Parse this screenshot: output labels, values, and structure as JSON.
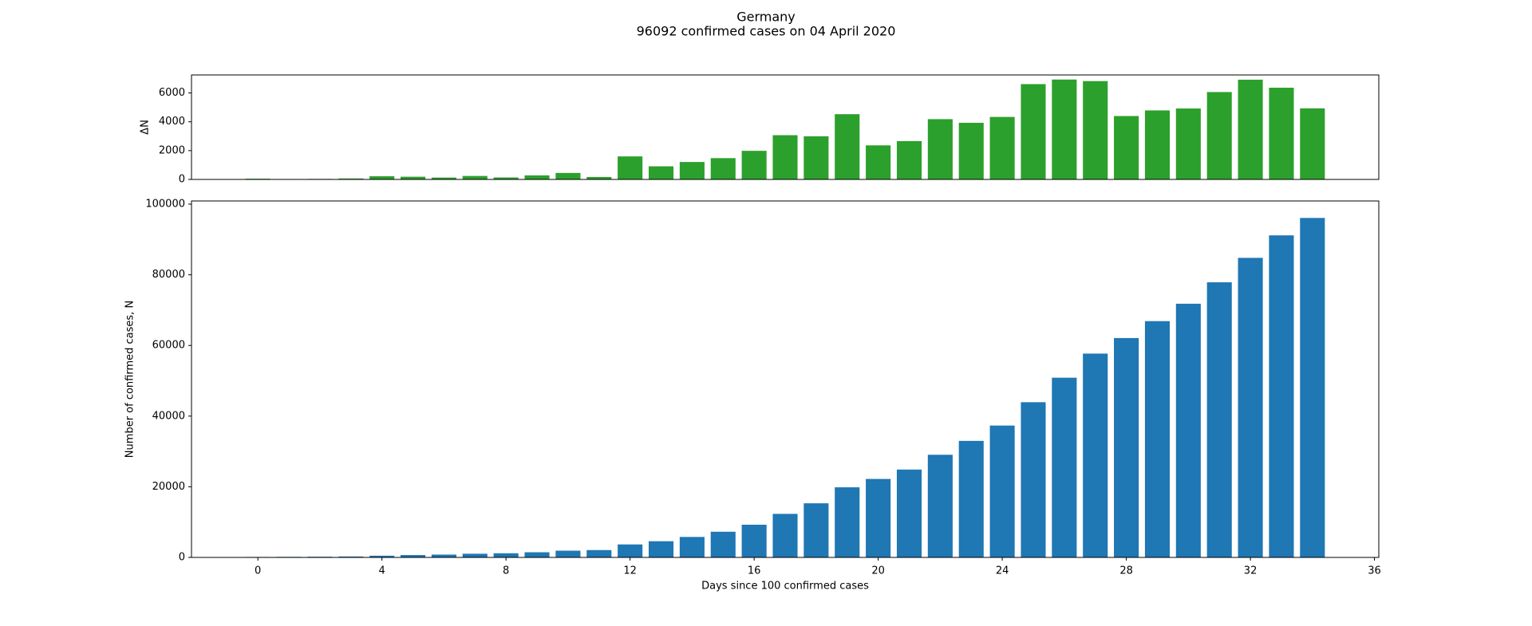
{
  "title": "Germany",
  "subtitle": "96092 confirmed cases on 04 April 2020",
  "chart_data": [
    {
      "type": "bar",
      "ylabel": "ΔN",
      "color": "#2ca02c",
      "x": [
        0,
        1,
        2,
        3,
        4,
        5,
        6,
        7,
        8,
        9,
        10,
        11,
        12,
        13,
        14,
        15,
        16,
        17,
        18,
        19,
        20,
        21,
        22,
        23,
        24,
        25,
        26,
        27,
        28,
        29,
        30,
        31,
        32,
        33,
        34
      ],
      "values": [
        51,
        29,
        37,
        66,
        220,
        188,
        129,
        241,
        136,
        281,
        451,
        170,
        1597,
        910,
        1210,
        1477,
        1985,
        3070,
        2993,
        4528,
        2365,
        2660,
        4183,
        3930,
        4337,
        6615,
        6933,
        6824,
        4400,
        4790,
        4923,
        6064,
        6922,
        6365,
        4933
      ],
      "xlim": [
        -2.14,
        36.14
      ],
      "ylim": [
        0,
        7250
      ],
      "yticks": [
        0,
        2000,
        4000,
        6000
      ]
    },
    {
      "type": "bar",
      "xlabel": "Days since 100 confirmed cases",
      "ylabel": "Number of confirmed cases, N",
      "color": "#1f77b4",
      "x": [
        0,
        1,
        2,
        3,
        4,
        5,
        6,
        7,
        8,
        9,
        10,
        11,
        12,
        13,
        14,
        15,
        16,
        17,
        18,
        19,
        20,
        21,
        22,
        23,
        24,
        25,
        26,
        27,
        28,
        29,
        30,
        31,
        32,
        33,
        34
      ],
      "values": [
        130,
        159,
        196,
        262,
        482,
        670,
        799,
        1040,
        1176,
        1457,
        1908,
        2078,
        3675,
        4585,
        5795,
        7272,
        9257,
        12327,
        15320,
        19848,
        22213,
        24873,
        29056,
        32986,
        37323,
        43938,
        50871,
        57695,
        62095,
        66885,
        71808,
        77872,
        84794,
        91159,
        96092
      ],
      "xlim": [
        -2.14,
        36.14
      ],
      "ylim": [
        0,
        100900
      ],
      "xticks": [
        0,
        4,
        8,
        12,
        16,
        20,
        24,
        28,
        32,
        36
      ],
      "yticks": [
        0,
        20000,
        40000,
        60000,
        80000,
        100000
      ]
    }
  ]
}
